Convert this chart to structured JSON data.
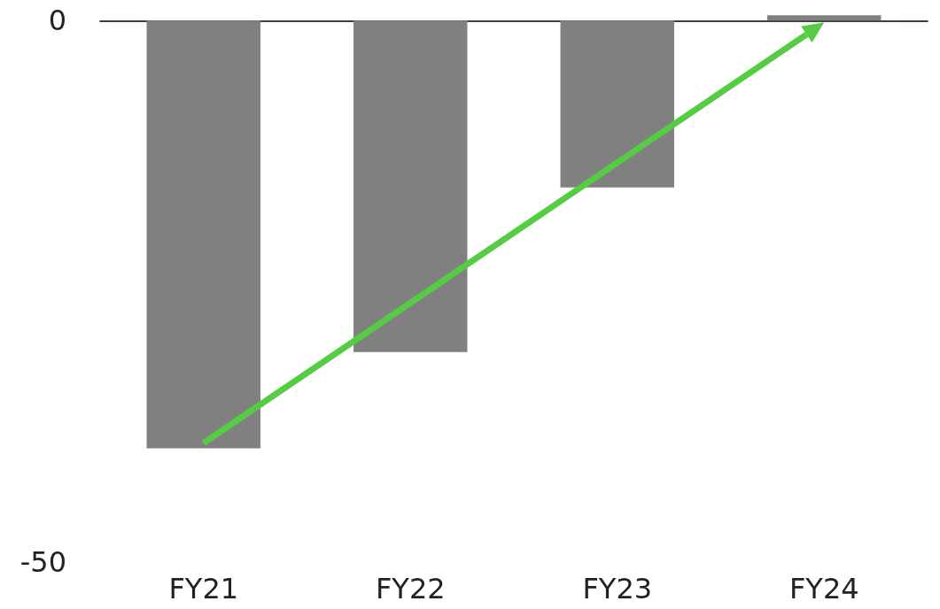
{
  "chart_data": {
    "type": "bar",
    "categories": [
      "FY21",
      "FY22",
      "FY23",
      "FY24"
    ],
    "values": [
      -39.5,
      -30.6,
      -15.4,
      0.5
    ],
    "color": "#808080",
    "ylim": [
      -50,
      1.5
    ],
    "yticks": [
      -50,
      0
    ]
  }
}
